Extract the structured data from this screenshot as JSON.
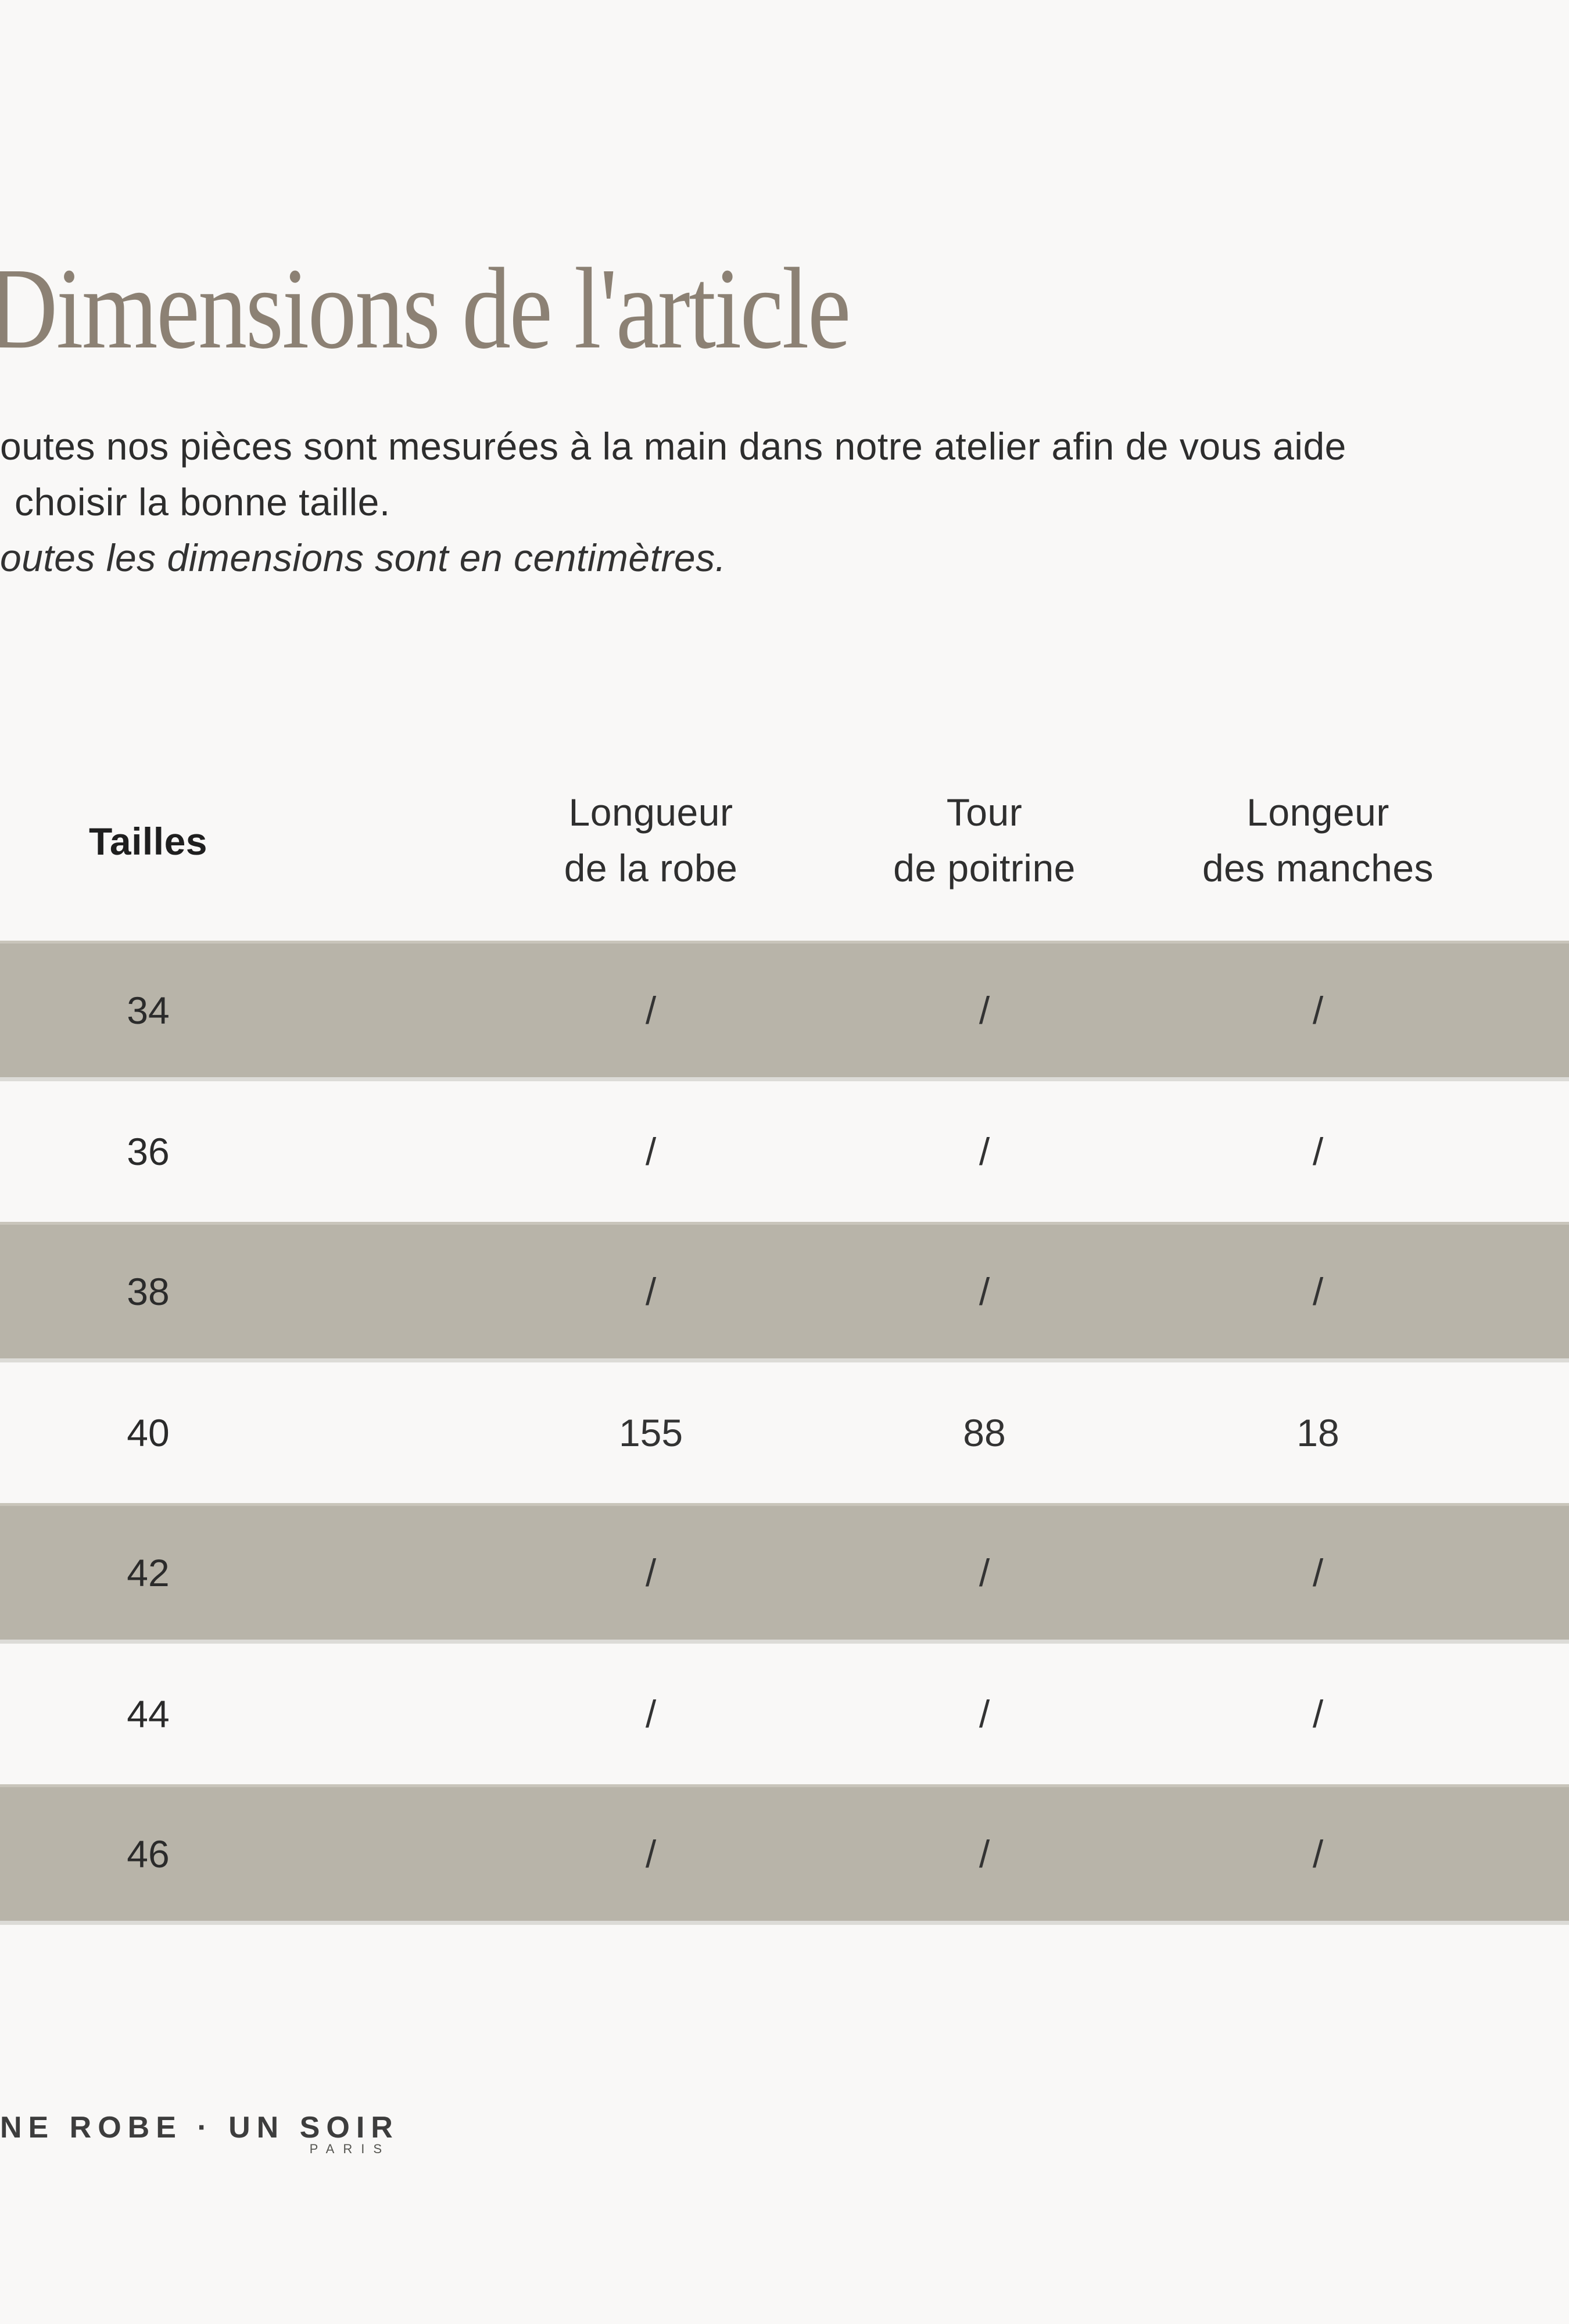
{
  "header": {
    "title": "Dimensions de l'article"
  },
  "intro": {
    "line1": "outes nos pièces sont mesurées à la main dans notre atelier afin de vous aide",
    "line2": "choisir la bonne taille.",
    "note": "outes les dimensions sont en centimètres."
  },
  "size_table": {
    "size_column_header": "Tailles",
    "columns": [
      {
        "line1": "Longueur",
        "line2": "de la robe"
      },
      {
        "line1": "Tour",
        "line2": "de poitrine"
      },
      {
        "line1": "Longeur",
        "line2": "des manches"
      }
    ],
    "rows": [
      {
        "size": "34",
        "values": [
          "/",
          "/",
          "/"
        ]
      },
      {
        "size": "36",
        "values": [
          "/",
          "/",
          "/"
        ]
      },
      {
        "size": "38",
        "values": [
          "/",
          "/",
          "/"
        ]
      },
      {
        "size": "40",
        "values": [
          "155",
          "88",
          "18"
        ]
      },
      {
        "size": "42",
        "values": [
          "/",
          "/",
          "/"
        ]
      },
      {
        "size": "44",
        "values": [
          "/",
          "/",
          "/"
        ]
      },
      {
        "size": "46",
        "values": [
          "/",
          "/",
          "/"
        ]
      }
    ]
  },
  "footer": {
    "brand": "NE ROBE · UN SOIR",
    "brand_sub": "PARIS"
  },
  "colors": {
    "background": "#f9f8f7",
    "row_beige": "#b8b4a9",
    "title": "#8c8174",
    "body_text": "#2d2d2d"
  }
}
